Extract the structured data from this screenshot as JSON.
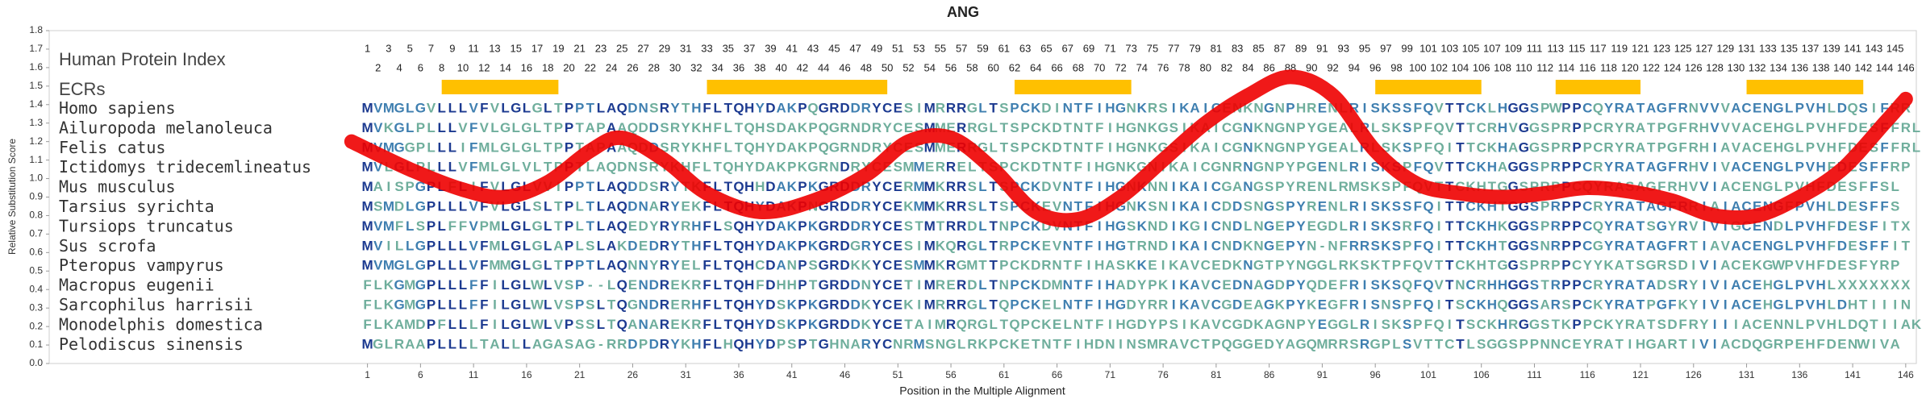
{
  "chart_data": {
    "type": "line",
    "title": "ANG",
    "xlabel": "Position in the Multiple Alignment",
    "ylabel": "Relative Substitution Score",
    "index_label": "Human Protein Index",
    "ecr_label": "ECRs",
    "xlim": [
      -29,
      147
    ],
    "ylim": [
      0,
      1.8
    ],
    "yticks": [
      {
        "value": 0,
        "label": "0.0"
      },
      0.1,
      0.2,
      0.3,
      0.4,
      0.5,
      0.6,
      0.7,
      0.8,
      0.9,
      {
        "value": 1,
        "label": "1.0"
      },
      1.1,
      1.2,
      1.3,
      1.4,
      1.5,
      1.6,
      1.7,
      1.8
    ],
    "xticks": [
      1,
      6,
      11,
      16,
      21,
      26,
      31,
      36,
      41,
      46,
      51,
      56,
      61,
      66,
      71,
      76,
      81,
      86,
      91,
      96,
      101,
      106,
      111,
      116,
      121,
      126,
      131,
      136,
      141,
      146
    ],
    "positions": [
      1,
      2,
      3,
      4,
      5,
      6,
      7,
      8,
      9,
      10,
      11,
      12,
      13,
      14,
      15,
      16,
      17,
      18,
      19,
      20,
      21,
      22,
      23,
      24,
      25,
      26,
      27,
      28,
      29,
      30,
      31,
      32,
      33,
      34,
      35,
      36,
      37,
      38,
      39,
      40,
      41,
      42,
      43,
      44,
      45,
      46,
      47,
      48,
      49,
      50,
      51,
      52,
      53,
      54,
      55,
      56,
      57,
      58,
      59,
      60,
      61,
      62,
      63,
      64,
      65,
      66,
      67,
      68,
      69,
      70,
      71,
      72,
      73,
      74,
      75,
      76,
      77,
      78,
      79,
      80,
      81,
      82,
      83,
      84,
      85,
      86,
      87,
      88,
      89,
      90,
      91,
      92,
      93,
      94,
      95,
      96,
      97,
      98,
      99,
      100,
      101,
      102,
      103,
      104,
      105,
      106,
      107,
      108,
      109,
      110,
      111,
      112,
      113,
      114,
      115,
      116,
      117,
      118,
      119,
      120,
      121,
      122,
      123,
      124,
      125,
      126,
      127,
      128,
      129,
      130,
      131,
      132,
      133,
      134,
      135,
      136,
      137,
      138,
      139,
      140,
      141,
      142,
      143,
      144,
      145,
      146
    ],
    "ecrs": {
      "color": "#ffc000",
      "ranges": [
        [
          8,
          19
        ],
        [
          33,
          50
        ],
        [
          62,
          73
        ],
        [
          96,
          106
        ],
        [
          113,
          121
        ],
        [
          131,
          142
        ]
      ]
    },
    "alignment": {
      "letter_colors": [
        "#1c3a90",
        "#3f7fb0",
        "#6fae9c"
      ],
      "rows": [
        {
          "name": "Homo sapiens",
          "sequence": "MVMGLGVLLLVFVLGLGLTPPTLAQDNSRYTHFLTQHYDAKPQGRDDRYCESIMRRRGLTSPCKDINTFIHGNKRSIKAICENKNGNPHRENLRISKSSFQVTTCKLHGGSPWPPCQYRATAGFRNVVVACENGLPVHLDQSIFRR"
        },
        {
          "name": "Ailuropoda melanoleuca",
          "sequence": "MVKGLPLLLVFVLGLGLTPPTAPAAQDDSRYKHFLTQHSDAKPQGRNDRYCESMMERRGLTSPCKDTNTFIHGNKGSIKAICGNKNGNPYGEALRLSKSPFQVTTCRHVGGSPRPPCRYRATPGFRHVVVACEHGLPVHFDESFFRL"
        },
        {
          "name": "Felis catus",
          "sequence": "MVMGGPLLLIFMLGLGLTPPTAPAAQDDSRYKHFLTQHYDAKPQGRNDRYCESMMERRGLTSPCKDTNTFIHGNKGSIKAICGNKNGNPYGEALRLSKSPFQITTCKHAGGSPRPPCRYRATPGFRHIAVACEHGLPVHFDESFFRL"
        },
        {
          "name": "Ictidomys tridecemlineatus",
          "sequence": "MVLGLPLLLVFMLGLVLTPPTLAQDNSRYKHFLTQHYDAKPKGRNDRYCESMMERRELTSPCKDTNTFIHGNKGNIKAICGNRNGNPYPGENLRISKSPFQVTTCKHAGGSPRPPCRYRATAGFRHVIVACENGLPVHFDESFFRP"
        },
        {
          "name": "Mus musculus",
          "sequence": "MAISPGPLFLIFVLGLVVIPPTLAQDDSRYTKFLTQHHDAKPKGRDDRYCERMMKRRSLTSPCKDVNTFIHGNKNNIKAICGANGSPYRENLRMSKSPFQVTTCKHTGGSPRPPCQYRASAGFRHVVIACENGLPVHFDESFFSL"
        },
        {
          "name": "Tarsius syrichta",
          "sequence": "MSMDLGPLLLVFVLGLSLTPLTLAQDNARYEKFLTQHYDAKPNGRDDRYCEKMMKRRSLTSPCKEVNTFIHGNKSNIKAICDDSNGSPYRENLRISKSSFQITTCKHTGGSPRPPCRYRATAGFRRIAIACENGFPVHLDESFFS"
        },
        {
          "name": "Tursiops truncatus",
          "sequence": "MVMFLSPLFFVPMLGLGLTPLTLAQEDYRYRHFLSQHYDAKPKGRDDRYCESTMTRRDLTNPCKDVNTFIHGSKNDIKGICNDLNGEPYEGDLRISKSRFQITTCKHKGGSPRPPCQYRATSGYRVIVIGCENDLPVHFDESFITX"
        },
        {
          "name": "Sus scrofa",
          "sequence": "MVILLGPLLLVFMLGLGLAPLSLAKDEDRYTHFLTQHYDAKPKGRDGRYCESIMKQRGLTRPCKEVNTFIHGTRNDIKAICNDKNGEPYN-NFRRSKSPFQITTCKHTGGSNRPPCGYRATAGFRTIAVACENGLPVHFDESFFIT"
        },
        {
          "name": "Pteropus vampyrus",
          "sequence": "MVMGLGPLLLVFMMGLGLTPPTLAQNNYRYELFLTQHCDANPSGRDKKYCESMMKRGMTTPCKDRNTFIHASKKEIKAVCEDKNGTPYNGGLRKSKTPFQVTTCKHTGGSPRPPCYYKATSGRSDIVIACEKGWPVHFDESFYRP"
        },
        {
          "name": "Macropus eugenii",
          "sequence": "FLKGMGPLLLFFILGLWLVSP--LQENDREKRFLTQHFDHHPTGRDDNYCETIMRERDLTNPCKDMNTFIHADYPKIKAVCEDNAGDPYQDEFRISKSQFQVTNCRHHGGSTRPPCRYRATADSRYIVIACEHGLPVHLXXXXXXX"
        },
        {
          "name": "Sarcophilus harrisii",
          "sequence": "FLKGMGPLLLFFILGLWLVSPSLTQGNDRERHFLTQHYDSKPKGRDDKYCEKIMRRRGLTQPCKELNTFIHGDYRRIKAVCGDEAGKPYKEGFRISNSPFQITSCKHQGGSARSPCKYRATPGFKYIVIACEHGLPVHLDHTIIIN"
        },
        {
          "name": "Monodelphis domestica",
          "sequence": "FLKAMDPFLLLFILGLWLVPSSLTQANAREKRFLTQHYDSKPKGRDDKYCETAIMRQRGLTQPCKELNTFIHGDYPSIKAVCGDKAGNPYEGGLRISKSPFQITSCKHRGGSTKPPCKYRATSDFRYIIIACENNLPVHLDQTIIAK"
        },
        {
          "name": "Pelodiscus sinensis",
          "sequence": "MGLRAAPLLLLTALLLAGASAG-RRDPDRYKHFLHQHYDPSPTGHNARYCNRMSNGLRKPCKETNTFIHDNINSMRAVCTPQGGEDYAGQMRRSRGPLSVTTCTLSGGSPPNNCEYRATIHGARTIVIACDQGRPEHFDENWIVA"
        }
      ]
    },
    "series": [
      {
        "color": "#ee0000",
        "x": [
          -0.5,
          5,
          10,
          14,
          18,
          22,
          25,
          29,
          33,
          38,
          43,
          48,
          52,
          56,
          60,
          64,
          68,
          72,
          76,
          80,
          84,
          88,
          92,
          96,
          100,
          104,
          108,
          112,
          116,
          120,
          124,
          128,
          132,
          136,
          140,
          144,
          146
        ],
        "values": [
          1.2,
          1.05,
          0.94,
          0.9,
          0.98,
          1.15,
          1.22,
          1.1,
          0.92,
          0.82,
          0.88,
          1.02,
          1.2,
          1.22,
          1.05,
          0.82,
          0.78,
          0.9,
          1.1,
          1.3,
          1.45,
          1.55,
          1.45,
          1.15,
          0.97,
          0.92,
          0.9,
          0.92,
          0.95,
          0.93,
          0.88,
          0.8,
          0.8,
          0.9,
          1.05,
          1.3,
          1.43
        ]
      }
    ]
  }
}
